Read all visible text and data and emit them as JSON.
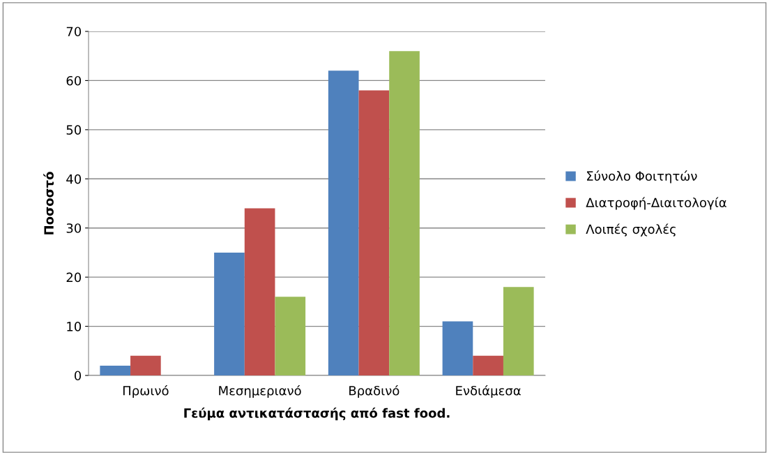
{
  "chart_data": {
    "type": "bar",
    "xlabel": "Γεύμα αντικατάστασής από fast food.",
    "ylabel": "Ποσοστό",
    "categories": [
      "Πρωινό",
      "Μεσημεριανό",
      "Βραδινό",
      "Ενδιάμεσα"
    ],
    "series": [
      {
        "name": "Σύνολο Φοιτητών",
        "color": "#4f81bd",
        "values": [
          2,
          25,
          62,
          11
        ]
      },
      {
        "name": "Διατροφή-Διαιτολογία",
        "color": "#c0504d",
        "values": [
          4,
          34,
          58,
          4
        ]
      },
      {
        "name": "Λοιπές σχολές",
        "color": "#9bbb59",
        "values": [
          0,
          16,
          66,
          18
        ]
      }
    ],
    "ylim": [
      0,
      70
    ],
    "yticks": [
      0,
      10,
      20,
      30,
      40,
      50,
      60,
      70
    ],
    "grid": "y",
    "legend": "right"
  }
}
